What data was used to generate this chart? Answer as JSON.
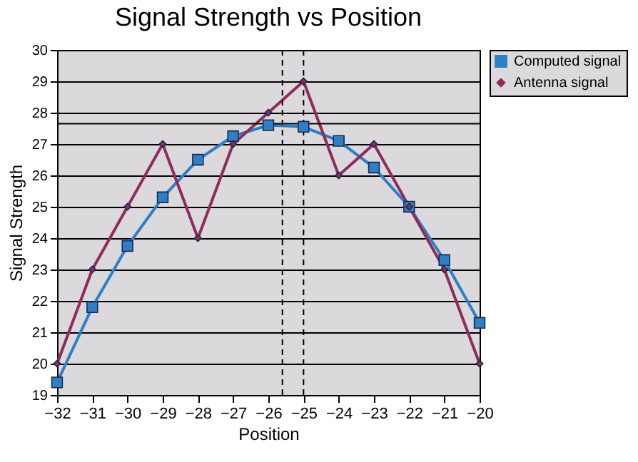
{
  "chart_data": {
    "type": "line",
    "title": "Signal Strength vs Position",
    "xlabel": "Position",
    "ylabel": "Signal Strength",
    "x": [
      -32,
      -31,
      -30,
      -29,
      -28,
      -27,
      -26,
      -25,
      -24,
      -23,
      -22,
      -21,
      -20
    ],
    "series": [
      {
        "name": "Computed signal",
        "color": "#2f7fc6",
        "marker": "square",
        "values": [
          19.4,
          21.8,
          23.75,
          25.3,
          26.5,
          27.25,
          27.6,
          27.55,
          27.1,
          26.25,
          25,
          23.3,
          21.3
        ]
      },
      {
        "name": "Antenna signal",
        "color": "#8e2d5c",
        "marker": "diamond",
        "values": [
          20,
          23,
          25,
          27,
          24,
          27,
          28,
          29,
          26,
          27,
          25,
          23,
          20
        ]
      }
    ],
    "xlim": [
      -32,
      -20
    ],
    "xticks": [
      -32,
      -31,
      -30,
      -29,
      -28,
      -27,
      -26,
      -25,
      -24,
      -23,
      -22,
      -21,
      -20
    ],
    "ylim": [
      19,
      30
    ],
    "yticks": [
      19,
      20,
      21,
      22,
      23,
      24,
      25,
      26,
      27,
      28,
      29,
      30
    ],
    "ref_lines": [
      {
        "axis": "y",
        "value": 27.65,
        "color": "#000000",
        "line_style": "solid"
      },
      {
        "axis": "x",
        "value": -25.6,
        "color": "#000000",
        "line_style": "dashed"
      },
      {
        "axis": "x",
        "value": -25,
        "color": "#000000",
        "line_style": "dashed"
      }
    ],
    "grid": "y",
    "legend": "right",
    "line_style": "solid"
  }
}
